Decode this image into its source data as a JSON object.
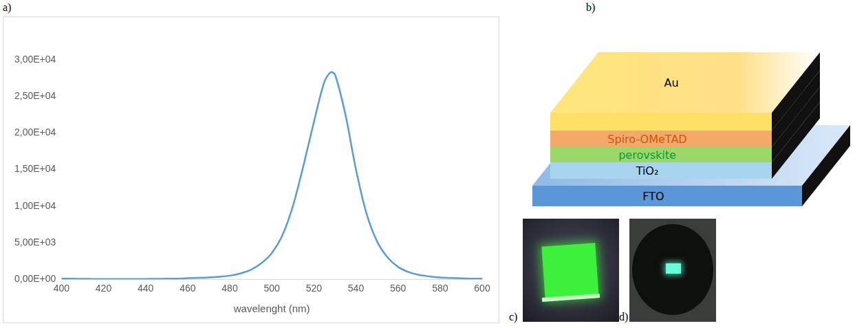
{
  "chart_data": {
    "type": "line",
    "x_label": "wavelenght (nm)",
    "x": [
      400,
      405,
      410,
      415,
      420,
      425,
      430,
      435,
      440,
      445,
      450,
      455,
      460,
      465,
      470,
      475,
      480,
      485,
      490,
      495,
      500,
      505,
      510,
      515,
      520,
      525,
      528,
      530,
      535,
      540,
      545,
      550,
      555,
      560,
      565,
      570,
      575,
      580,
      585,
      590,
      595,
      600
    ],
    "values": [
      100,
      80,
      60,
      50,
      40,
      40,
      40,
      40,
      50,
      60,
      80,
      100,
      150,
      200,
      250,
      350,
      500,
      800,
      1300,
      2200,
      3600,
      6000,
      10000,
      15500,
      21500,
      27000,
      28300,
      28000,
      22500,
      15000,
      9000,
      5200,
      3000,
      1700,
      1000,
      600,
      400,
      250,
      180,
      130,
      100,
      80
    ],
    "color": "#5b9bd5",
    "xlim": [
      400,
      600
    ],
    "xticks": [
      400,
      420,
      440,
      460,
      480,
      500,
      520,
      540,
      560,
      580,
      600
    ],
    "ylim": [
      0,
      30000
    ],
    "yticks": [
      {
        "value": 0,
        "label": "0,00E+00"
      },
      {
        "value": 5000,
        "label": "5,00E+03"
      },
      {
        "value": 10000,
        "label": "1,00E+04"
      },
      {
        "value": 15000,
        "label": "1,50E+04"
      },
      {
        "value": 20000,
        "label": "2,00E+04"
      },
      {
        "value": 25000,
        "label": "2,50E+04"
      },
      {
        "value": 30000,
        "label": "3,00E+04"
      }
    ],
    "grid": false
  },
  "panel_labels": [
    "a)",
    "b)",
    "c)",
    "d)"
  ],
  "diagram": {
    "layers": [
      "Au",
      "Spiro-OMeTAD",
      "perovskite",
      "TiO₂",
      "FTO"
    ]
  }
}
